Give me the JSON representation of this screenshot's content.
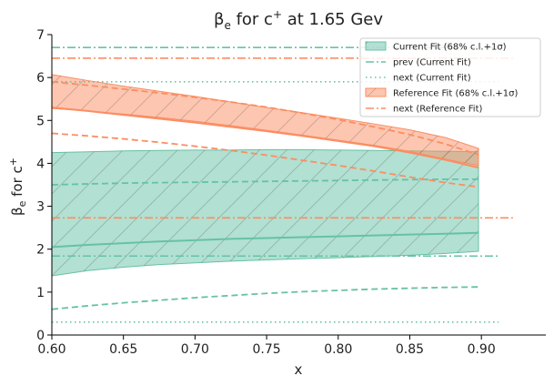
{
  "chart_data": {
    "type": "line",
    "title": {
      "base": "β",
      "base_sub": "e",
      "mid": " for c",
      "mid_sup": "+",
      "tail": " at 1.65 Gev"
    },
    "xlabel": "x",
    "ylabel": {
      "base": "β",
      "base_sub": "e",
      "mid": " for c",
      "mid_sup": "+"
    },
    "xlim": [
      0.6,
      0.945
    ],
    "ylim": [
      0,
      7
    ],
    "xticks": [
      "0.60",
      "0.65",
      "0.70",
      "0.75",
      "0.80",
      "0.85",
      "0.90"
    ],
    "xtick_values": [
      0.6,
      0.65,
      0.7,
      0.75,
      0.8,
      0.85,
      0.9
    ],
    "yticks": [
      "0",
      "1",
      "2",
      "3",
      "4",
      "5",
      "6",
      "7"
    ],
    "ytick_values": [
      0,
      1,
      2,
      3,
      4,
      5,
      6,
      7
    ],
    "grid": false,
    "legend_position": "upper right",
    "colors": {
      "current": "#66c2a5",
      "reference": "#fc8d62"
    },
    "series": [
      {
        "name": "Current Fit (68% c.l.+1σ)",
        "kind": "band",
        "color": "#66c2a5",
        "x": [
          0.6,
          0.625,
          0.65,
          0.675,
          0.7,
          0.725,
          0.75,
          0.775,
          0.8,
          0.825,
          0.85,
          0.875,
          0.898
        ],
        "lower": [
          1.38,
          1.5,
          1.58,
          1.64,
          1.68,
          1.72,
          1.75,
          1.78,
          1.8,
          1.83,
          1.86,
          1.9,
          1.95
        ],
        "upper": [
          4.25,
          4.27,
          4.29,
          4.3,
          4.31,
          4.31,
          4.32,
          4.32,
          4.31,
          4.3,
          4.29,
          4.28,
          4.27
        ],
        "central": [
          2.05,
          2.1,
          2.14,
          2.18,
          2.21,
          2.24,
          2.26,
          2.28,
          2.3,
          2.32,
          2.34,
          2.36,
          2.38
        ],
        "lower_dashed": [
          0.6,
          0.68,
          0.75,
          0.81,
          0.87,
          0.92,
          0.97,
          1.01,
          1.04,
          1.07,
          1.09,
          1.11,
          1.12
        ],
        "upper_dashed": [
          3.5,
          3.52,
          3.54,
          3.55,
          3.56,
          3.57,
          3.58,
          3.59,
          3.6,
          3.61,
          3.62,
          3.63,
          3.63
        ]
      },
      {
        "name": "prev (Current Fit)",
        "kind": "hline",
        "style": "dashdot",
        "color": "#66c2a5",
        "values": [
          6.7,
          1.84
        ],
        "x_range": [
          0.6,
          0.912
        ]
      },
      {
        "name": "next (Current Fit)",
        "kind": "hline",
        "style": "dotted",
        "color": "#66c2a5",
        "values": [
          5.9,
          0.3
        ],
        "x_range": [
          0.6,
          0.912
        ]
      },
      {
        "name": "Reference Fit (68% c.l.+1σ)",
        "kind": "band",
        "color": "#fc8d62",
        "x": [
          0.6,
          0.625,
          0.65,
          0.675,
          0.7,
          0.725,
          0.75,
          0.775,
          0.8,
          0.825,
          0.85,
          0.875,
          0.898
        ],
        "lower": [
          5.28,
          5.22,
          5.15,
          5.07,
          4.98,
          4.88,
          4.77,
          4.66,
          4.54,
          4.42,
          4.28,
          4.1,
          3.95
        ],
        "upper": [
          6.07,
          5.93,
          5.8,
          5.68,
          5.56,
          5.43,
          5.3,
          5.18,
          5.05,
          4.92,
          4.78,
          4.6,
          4.35
        ],
        "central": [
          5.3,
          5.22,
          5.13,
          5.04,
          4.95,
          4.85,
          4.75,
          4.64,
          4.52,
          4.4,
          4.25,
          4.08,
          3.9
        ],
        "lower_dashed": [
          4.7,
          4.64,
          4.57,
          4.49,
          4.4,
          4.3,
          4.19,
          4.07,
          3.95,
          3.82,
          3.68,
          3.55,
          3.45
        ],
        "upper_dashed": [
          5.9,
          5.82,
          5.73,
          5.64,
          5.54,
          5.43,
          5.31,
          5.17,
          5.02,
          4.85,
          4.67,
          4.45,
          4.2
        ]
      },
      {
        "name": "next (Reference Fit)",
        "kind": "hline",
        "style": "dashdot",
        "color": "#fc8d62",
        "values": [
          6.45,
          2.73
        ],
        "x_range": [
          0.6,
          0.922
        ]
      }
    ]
  }
}
